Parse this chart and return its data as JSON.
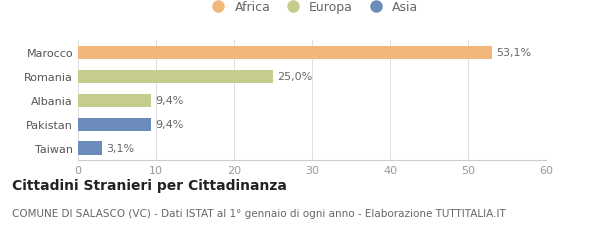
{
  "categories": [
    "Taiwan",
    "Pakistan",
    "Albania",
    "Romania",
    "Marocco"
  ],
  "values": [
    3.1,
    9.4,
    9.4,
    25.0,
    53.1
  ],
  "labels": [
    "3,1%",
    "9,4%",
    "9,4%",
    "25,0%",
    "53,1%"
  ],
  "colors": [
    "#6b8cba",
    "#6b8cba",
    "#c5cc8e",
    "#c5cc8e",
    "#f0b87a"
  ],
  "legend": [
    {
      "label": "Africa",
      "color": "#f0b87a"
    },
    {
      "label": "Europa",
      "color": "#c5cc8e"
    },
    {
      "label": "Asia",
      "color": "#6b8cba"
    }
  ],
  "xlim": [
    0,
    60
  ],
  "xticks": [
    0,
    10,
    20,
    30,
    40,
    50,
    60
  ],
  "title": "Cittadini Stranieri per Cittadinanza",
  "subtitle": "COMUNE DI SALASCO (VC) - Dati ISTAT al 1° gennaio di ogni anno - Elaborazione TUTTITALIA.IT",
  "background_color": "#ffffff",
  "bar_height": 0.55,
  "title_fontsize": 10,
  "subtitle_fontsize": 7.5,
  "label_fontsize": 8,
  "tick_fontsize": 8,
  "legend_fontsize": 9
}
